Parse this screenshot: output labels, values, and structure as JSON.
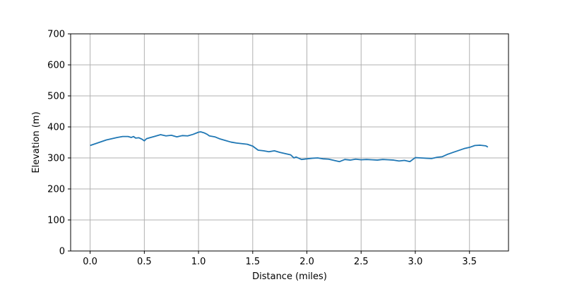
{
  "chart_data": {
    "type": "line",
    "title": "",
    "xlabel": "Distance (miles)",
    "ylabel": "Elevation (m)",
    "xlim": [
      -0.18,
      3.86
    ],
    "ylim": [
      0,
      700
    ],
    "xticks": [
      0.0,
      0.5,
      1.0,
      1.5,
      2.0,
      2.5,
      3.0,
      3.5
    ],
    "xtick_labels": [
      "0.0",
      "0.5",
      "1.0",
      "1.5",
      "2.0",
      "2.5",
      "3.0",
      "3.5"
    ],
    "yticks": [
      0,
      100,
      200,
      300,
      400,
      500,
      600,
      700
    ],
    "ytick_labels": [
      "0",
      "100",
      "200",
      "300",
      "400",
      "500",
      "600",
      "700"
    ],
    "grid": true,
    "legend": "none",
    "line_color": "#1f77b4",
    "series": [
      {
        "x": [
          0.0,
          0.05,
          0.1,
          0.15,
          0.2,
          0.25,
          0.3,
          0.35,
          0.38,
          0.4,
          0.42,
          0.45,
          0.48,
          0.5,
          0.52,
          0.55,
          0.6,
          0.65,
          0.7,
          0.75,
          0.78,
          0.8,
          0.85,
          0.9,
          0.95,
          1.0,
          1.02,
          1.05,
          1.08,
          1.1,
          1.15,
          1.2,
          1.25,
          1.3,
          1.35,
          1.4,
          1.45,
          1.5,
          1.55,
          1.6,
          1.65,
          1.7,
          1.75,
          1.8,
          1.85,
          1.88,
          1.9,
          1.95,
          2.0,
          2.05,
          2.1,
          2.15,
          2.2,
          2.25,
          2.3,
          2.35,
          2.4,
          2.45,
          2.5,
          2.55,
          2.6,
          2.65,
          2.7,
          2.75,
          2.8,
          2.85,
          2.9,
          2.95,
          3.0,
          3.05,
          3.1,
          3.15,
          3.2,
          3.25,
          3.3,
          3.35,
          3.4,
          3.45,
          3.5,
          3.55,
          3.6,
          3.65,
          3.67
        ],
        "y": [
          340,
          346,
          352,
          358,
          362,
          366,
          369,
          369,
          366,
          369,
          364,
          365,
          360,
          355,
          362,
          365,
          370,
          375,
          371,
          373,
          370,
          368,
          372,
          371,
          376,
          383,
          384,
          381,
          376,
          371,
          368,
          361,
          356,
          351,
          348,
          346,
          344,
          338,
          325,
          323,
          320,
          323,
          318,
          314,
          310,
          300,
          303,
          295,
          297,
          299,
          300,
          297,
          296,
          292,
          288,
          295,
          293,
          296,
          294,
          295,
          294,
          293,
          295,
          294,
          293,
          290,
          292,
          288,
          301,
          300,
          299,
          298,
          302,
          304,
          312,
          318,
          324,
          330,
          334,
          340,
          341,
          339,
          335
        ]
      }
    ]
  }
}
